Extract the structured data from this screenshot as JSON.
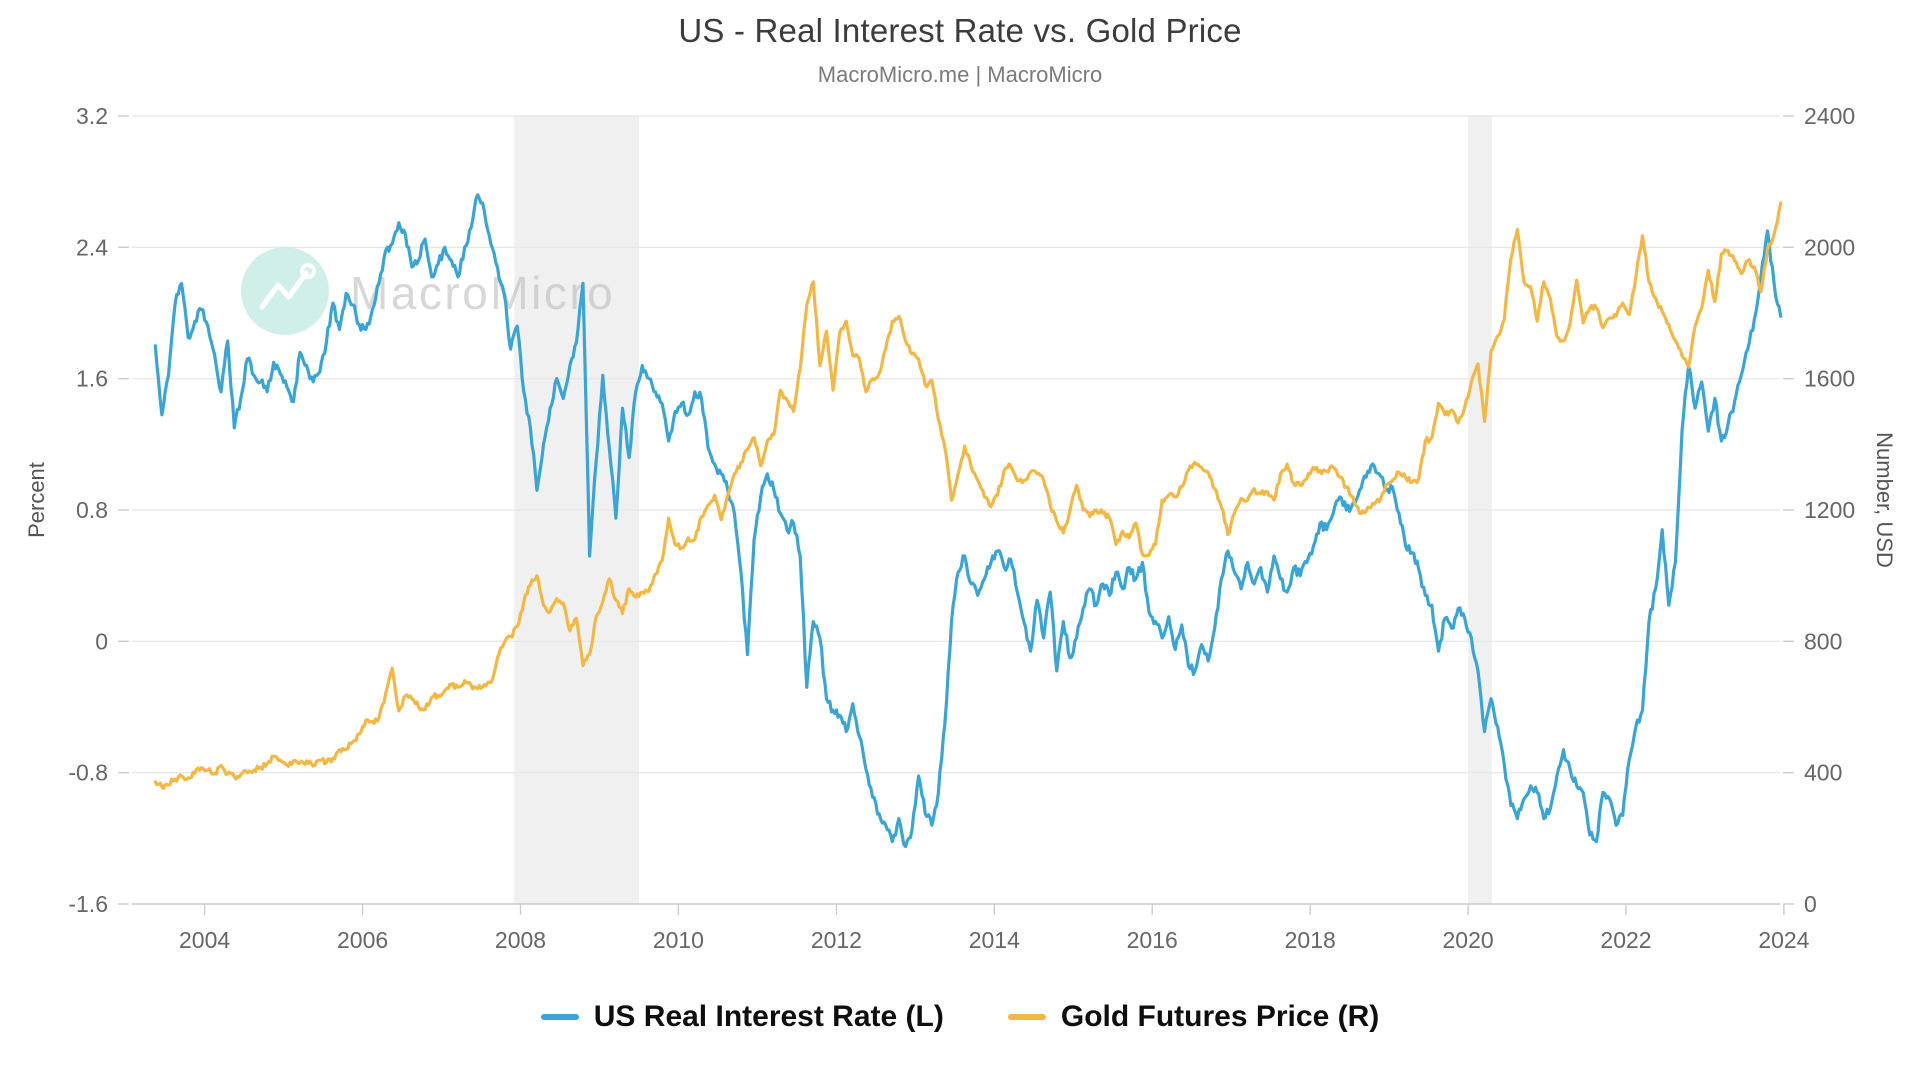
{
  "ui": {
    "title": "US - Real Interest Rate vs. Gold Price",
    "subtitle": "MacroMicro.me | MacroMicro",
    "watermark_text": "MacroMicro",
    "left_axis_title": "Percent",
    "right_axis_title": "Number, USD",
    "legend": [
      {
        "label": "US Real Interest Rate (L)",
        "color": "#39A5D6"
      },
      {
        "label": "Gold Futures Price (R)",
        "color": "#F3B843"
      }
    ]
  },
  "chart_data": {
    "type": "line",
    "title": "US - Real Interest Rate vs. Gold Price",
    "subtitle": "MacroMicro.me | MacroMicro",
    "grid": true,
    "legend_position": "bottom",
    "x_axis": {
      "range": [
        2003.08,
        2023.95
      ],
      "ticks": [
        2004,
        2006,
        2008,
        2010,
        2012,
        2014,
        2016,
        2018,
        2020,
        2022,
        2024
      ]
    },
    "left_axis": {
      "label": "Percent",
      "min": -1.6,
      "max": 3.2,
      "ticks": [
        3.2,
        2.4,
        1.6,
        0.8,
        0,
        -0.8,
        -1.6
      ]
    },
    "right_axis": {
      "label": "Number, USD",
      "min": 0,
      "max": 2400,
      "ticks": [
        2400,
        2000,
        1600,
        1200,
        800,
        400,
        0
      ]
    },
    "recession_bands": [
      {
        "from": 2007.92,
        "to": 2009.5
      },
      {
        "from": 2020.0,
        "to": 2020.3
      }
    ],
    "colors": {
      "band": "#F0F0F0",
      "grid": "#E8E8E8",
      "axis_line": "#CCCCCC",
      "tick_label": "#666666",
      "watermark_circle": "#C9ECE5",
      "watermark_text": "#BDBDBD"
    },
    "series": [
      {
        "name": "US Real Interest Rate (L)",
        "axis": "left",
        "color": "#39A5D6",
        "start": 2003.375,
        "step_years": 0.0833333,
        "noise": 0.06,
        "seed": 11,
        "values": [
          1.8,
          1.38,
          1.62,
          2.05,
          2.18,
          1.85,
          1.95,
          2.02,
          1.92,
          1.75,
          1.52,
          1.83,
          1.3,
          1.48,
          1.72,
          1.62,
          1.58,
          1.52,
          1.7,
          1.63,
          1.55,
          1.46,
          1.76,
          1.68,
          1.58,
          1.64,
          1.82,
          2.06,
          1.9,
          2.12,
          2.05,
          1.93,
          1.9,
          2.02,
          2.18,
          2.38,
          2.42,
          2.55,
          2.48,
          2.28,
          2.32,
          2.45,
          2.22,
          2.3,
          2.4,
          2.32,
          2.22,
          2.4,
          2.52,
          2.72,
          2.62,
          2.42,
          2.28,
          2.12,
          1.78,
          1.92,
          1.52,
          1.3,
          0.92,
          1.2,
          1.42,
          1.6,
          1.48,
          1.68,
          1.82,
          2.18,
          0.52,
          1.1,
          1.62,
          1.18,
          0.75,
          1.42,
          1.12,
          1.52,
          1.68,
          1.6,
          1.52,
          1.45,
          1.22,
          1.4,
          1.45,
          1.38,
          1.52,
          1.48,
          1.18,
          1.08,
          1.02,
          0.92,
          0.78,
          0.42,
          -0.08,
          0.62,
          0.88,
          1.02,
          0.92,
          0.78,
          0.68,
          0.72,
          0.52,
          -0.28,
          0.12,
          0.02,
          -0.35,
          -0.42,
          -0.45,
          -0.55,
          -0.38,
          -0.58,
          -0.78,
          -0.95,
          -1.05,
          -1.12,
          -1.22,
          -1.08,
          -1.25,
          -1.15,
          -0.82,
          -1.05,
          -1.12,
          -0.92,
          -0.5,
          0.12,
          0.42,
          0.52,
          0.35,
          0.28,
          0.38,
          0.48,
          0.55,
          0.45,
          0.5,
          0.3,
          0.12,
          -0.06,
          0.25,
          0.02,
          0.3,
          -0.18,
          0.12,
          -0.1,
          0.02,
          0.2,
          0.32,
          0.22,
          0.35,
          0.28,
          0.42,
          0.32,
          0.45,
          0.38,
          0.48,
          0.18,
          0.12,
          0.02,
          0.15,
          -0.05,
          0.1,
          -0.15,
          -0.18,
          -0.02,
          -0.12,
          0.08,
          0.38,
          0.55,
          0.42,
          0.32,
          0.48,
          0.35,
          0.45,
          0.3,
          0.52,
          0.38,
          0.3,
          0.45,
          0.4,
          0.48,
          0.58,
          0.72,
          0.68,
          0.78,
          0.88,
          0.8,
          0.84,
          0.92,
          1.0,
          1.08,
          1.02,
          0.92,
          0.94,
          0.78,
          0.58,
          0.54,
          0.44,
          0.28,
          0.22,
          -0.06,
          0.14,
          0.08,
          0.2,
          0.14,
          0.02,
          -0.18,
          -0.55,
          -0.35,
          -0.52,
          -0.75,
          -1.0,
          -1.08,
          -0.96,
          -0.88,
          -0.92,
          -1.08,
          -1.02,
          -0.82,
          -0.66,
          -0.78,
          -0.88,
          -0.92,
          -1.18,
          -1.22,
          -0.92,
          -0.96,
          -1.12,
          -1.06,
          -0.72,
          -0.52,
          -0.42,
          0.12,
          0.32,
          0.68,
          0.22,
          0.48,
          1.28,
          1.68,
          1.42,
          1.58,
          1.28,
          1.48,
          1.22,
          1.32,
          1.46,
          1.62,
          1.78,
          1.96,
          2.22,
          2.5,
          2.18,
          1.98
        ]
      },
      {
        "name": "Gold Futures Price (R)",
        "axis": "right",
        "color": "#F3B843",
        "start": 2003.375,
        "step_years": 0.0833333,
        "noise": 18,
        "seed": 77,
        "values": [
          372,
          358,
          362,
          380,
          390,
          384,
          398,
          415,
          408,
          398,
          422,
          396,
          388,
          394,
          400,
          408,
          416,
          428,
          450,
          438,
          424,
          436,
          430,
          436,
          420,
          438,
          430,
          444,
          470,
          472,
          494,
          518,
          560,
          556,
          566,
          640,
          718,
          588,
          634,
          626,
          600,
          592,
          630,
          636,
          650,
          668,
          660,
          680,
          666,
          656,
          668,
          674,
          750,
          795,
          815,
          845,
          920,
          972,
          1000,
          910,
          890,
          930,
          916,
          832,
          870,
          726,
          760,
          875,
          920,
          990,
          925,
          885,
          960,
          935,
          950,
          952,
          1005,
          1045,
          1175,
          1095,
          1085,
          1115,
          1110,
          1180,
          1215,
          1245,
          1170,
          1245,
          1310,
          1345,
          1385,
          1420,
          1335,
          1410,
          1430,
          1565,
          1535,
          1500,
          1630,
          1825,
          1895,
          1640,
          1745,
          1565,
          1740,
          1775,
          1670,
          1660,
          1560,
          1600,
          1615,
          1690,
          1775,
          1790,
          1715,
          1675,
          1660,
          1580,
          1595,
          1475,
          1390,
          1230,
          1310,
          1395,
          1330,
          1290,
          1240,
          1210,
          1245,
          1320,
          1335,
          1290,
          1290,
          1315,
          1310,
          1290,
          1215,
          1165,
          1130,
          1200,
          1275,
          1200,
          1180,
          1200,
          1190,
          1175,
          1095,
          1135,
          1115,
          1160,
          1065,
          1062,
          1095,
          1230,
          1245,
          1240,
          1270,
          1320,
          1345,
          1330,
          1315,
          1265,
          1210,
          1125,
          1190,
          1235,
          1230,
          1265,
          1250,
          1255,
          1230,
          1310,
          1340,
          1280,
          1275,
          1295,
          1330,
          1320,
          1318,
          1330,
          1300,
          1270,
          1240,
          1190,
          1195,
          1220,
          1225,
          1275,
          1290,
          1315,
          1300,
          1285,
          1295,
          1410,
          1420,
          1525,
          1490,
          1505,
          1465,
          1515,
          1590,
          1645,
          1470,
          1685,
          1730,
          1780,
          1965,
          2055,
          1895,
          1880,
          1775,
          1895,
          1845,
          1730,
          1715,
          1770,
          1900,
          1770,
          1815,
          1815,
          1755,
          1785,
          1790,
          1830,
          1795,
          1910,
          2035,
          1895,
          1845,
          1805,
          1765,
          1715,
          1670,
          1635,
          1760,
          1815,
          1930,
          1835,
          1980,
          1990,
          1960,
          1920,
          1960,
          1940,
          1865,
          1995,
          2040,
          2135
        ]
      }
    ]
  }
}
